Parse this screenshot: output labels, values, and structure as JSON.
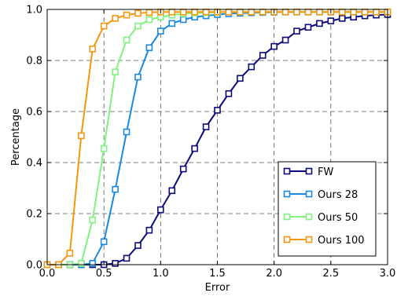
{
  "chart_data": {
    "type": "line",
    "xlabel": "Error",
    "ylabel": "Percentage",
    "xlim": [
      0.0,
      3.0
    ],
    "ylim": [
      0.0,
      1.0
    ],
    "xticks": [
      "0.0",
      "0.5",
      "1.0",
      "1.5",
      "2.0",
      "2.5",
      "3.0"
    ],
    "yticks": [
      "0.0",
      "0.2",
      "0.4",
      "0.6",
      "0.8",
      "1.0"
    ],
    "grid": true,
    "legend_position": "bottom-right",
    "marker": "open-square",
    "x": [
      0.0,
      0.1,
      0.2,
      0.3,
      0.4,
      0.5,
      0.6,
      0.7,
      0.8,
      0.9,
      1.0,
      1.1,
      1.2,
      1.3,
      1.4,
      1.5,
      1.6,
      1.7,
      1.8,
      1.9,
      2.0,
      2.1,
      2.2,
      2.3,
      2.4,
      2.5,
      2.6,
      2.7,
      2.8,
      2.9,
      3.0
    ],
    "series": [
      {
        "name": "FW",
        "color": "#0b0b7a",
        "values": [
          0.0,
          0.0,
          0.0,
          0.0,
          0.0,
          0.0,
          0.005,
          0.025,
          0.075,
          0.135,
          0.215,
          0.29,
          0.375,
          0.455,
          0.54,
          0.605,
          0.67,
          0.73,
          0.775,
          0.82,
          0.855,
          0.88,
          0.915,
          0.93,
          0.945,
          0.955,
          0.965,
          0.97,
          0.975,
          0.978,
          0.98
        ]
      },
      {
        "name": "Ours 28",
        "color": "#1a8ae0",
        "values": [
          0.0,
          0.0,
          0.0,
          0.0,
          0.005,
          0.09,
          0.295,
          0.52,
          0.735,
          0.85,
          0.915,
          0.945,
          0.96,
          0.97,
          0.975,
          0.98,
          0.983,
          0.985,
          0.987,
          0.988,
          0.989,
          0.99,
          0.99,
          0.99,
          0.99,
          0.99,
          0.99,
          0.99,
          0.99,
          0.99,
          0.99
        ]
      },
      {
        "name": "Ours 50",
        "color": "#7ff27f",
        "values": [
          0.0,
          0.0,
          0.0,
          0.005,
          0.175,
          0.455,
          0.755,
          0.88,
          0.935,
          0.96,
          0.97,
          0.978,
          0.983,
          0.986,
          0.988,
          0.989,
          0.99,
          0.99,
          0.99,
          0.99,
          0.99,
          0.99,
          0.99,
          0.99,
          0.99,
          0.99,
          0.99,
          0.99,
          0.99,
          0.99,
          0.99
        ]
      },
      {
        "name": "Ours 100",
        "color": "#f5960f",
        "values": [
          0.0,
          0.0,
          0.045,
          0.505,
          0.845,
          0.935,
          0.965,
          0.978,
          0.985,
          0.988,
          0.99,
          0.99,
          0.99,
          0.99,
          0.99,
          0.99,
          0.99,
          0.99,
          0.99,
          0.99,
          0.99,
          0.99,
          0.99,
          0.99,
          0.99,
          0.99,
          0.99,
          0.99,
          0.99,
          0.99,
          0.99
        ]
      }
    ]
  }
}
